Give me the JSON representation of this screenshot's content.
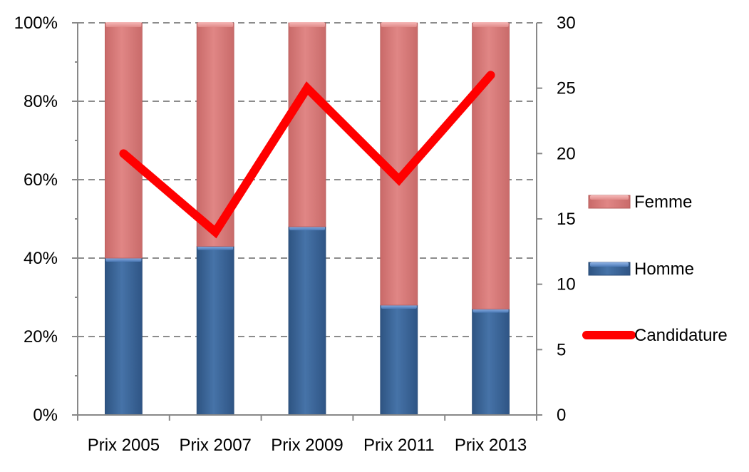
{
  "chart_data": {
    "type": "bar",
    "stacked": true,
    "categories": [
      "Prix 2005",
      "Prix 2007",
      "Prix 2009",
      "Prix 2011",
      "Prix 2013"
    ],
    "series": [
      {
        "name": "Homme",
        "axis": "left",
        "type": "bar",
        "unit": "%",
        "values": [
          40,
          43,
          48,
          28,
          27
        ]
      },
      {
        "name": "Femme",
        "axis": "left",
        "type": "bar",
        "unit": "%",
        "values": [
          60,
          57,
          52,
          72,
          73
        ]
      },
      {
        "name": "Candidature",
        "axis": "right",
        "type": "line",
        "values": [
          20,
          14,
          25,
          18,
          26
        ]
      }
    ],
    "left_axis": {
      "ylim": [
        0,
        100
      ],
      "ticks": [
        "0%",
        "20%",
        "40%",
        "60%",
        "80%",
        "100%"
      ]
    },
    "right_axis": {
      "ylim": [
        0,
        30
      ],
      "ticks": [
        "0",
        "5",
        "10",
        "15",
        "20",
        "25",
        "30"
      ]
    },
    "grid": true,
    "legend_position": "right",
    "legend_order": [
      "Femme",
      "Homme",
      "Candidature"
    ],
    "colors": {
      "Homme": "#3d6697",
      "Femme": "#d97b7a",
      "Candidature": "#ff0000"
    }
  }
}
